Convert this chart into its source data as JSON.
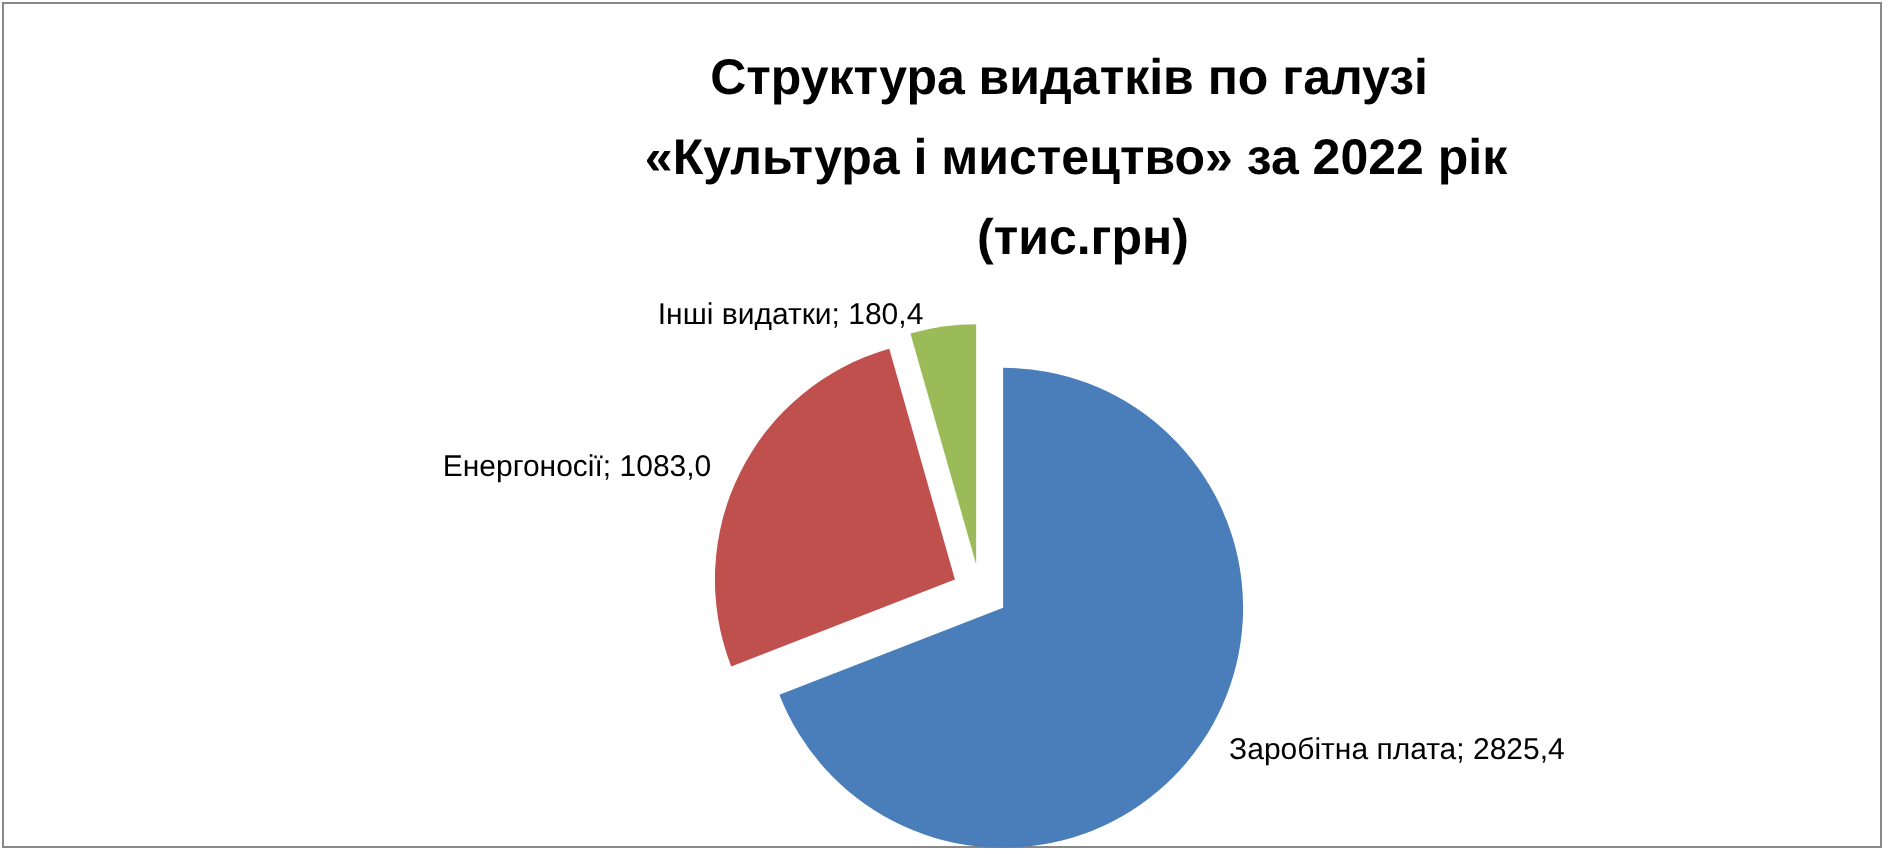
{
  "chart_data": {
    "type": "pie",
    "title": "Структура видатків по галузі «Культура і мистецтво» за 2022 рік (тис.грн)",
    "categories": [
      "Заробітна плата",
      "Енергоносії",
      "Інші видатки"
    ],
    "values": [
      2825.4,
      1083.0,
      180.4
    ],
    "value_labels": [
      "2825,4",
      "1083,0",
      "180,4"
    ],
    "colors": [
      "#4a7ebb",
      "#c0504d",
      "#9bbb59"
    ],
    "legend": false
  }
}
